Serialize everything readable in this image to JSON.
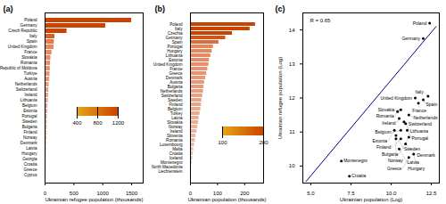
{
  "chart_data": [
    {
      "type": "bar",
      "orientation": "horizontal",
      "title": "(a)",
      "xlabel": "Ukrainian refugee population (thousands)",
      "categories": [
        "Poland",
        "Germany",
        "Czech Republic",
        "Italy",
        "Spain",
        "United Kingdom",
        "France",
        "Slovakia",
        "Romania",
        "Republic of Moldova",
        "Turkiye",
        "Austria",
        "Netherlands",
        "Switzerland",
        "Ireland",
        "Lithuania",
        "Belgium",
        "Estonia",
        "Portugal",
        "Sweden",
        "Bulgaria",
        "Finland",
        "Norway",
        "Denmark",
        "Latvia",
        "Hungary",
        "Georgia",
        "Croatia",
        "Greece",
        "Cyprus"
      ],
      "values": [
        1500,
        1050,
        380,
        170,
        160,
        155,
        120,
        100,
        95,
        90,
        85,
        80,
        70,
        65,
        60,
        55,
        50,
        45,
        40,
        38,
        36,
        34,
        32,
        28,
        26,
        22,
        20,
        18,
        16,
        14
      ],
      "colors": [
        "#c94400",
        "#c94400",
        "#c94400",
        "#d65f26",
        "#e37a4c",
        "#e8865d",
        "#e88961",
        "#e88c65",
        "#e88f69",
        "#e8916d",
        "#e89471",
        "#e89776",
        "#e89a7a",
        "#e89d7e",
        "#e8a082",
        "#e8a386",
        "#e8a68a",
        "#e8a88e",
        "#e8ab92",
        "#e8ae97",
        "#e8b19b",
        "#e8b49f",
        "#e8b7a3",
        "#e8baa7",
        "#e8bdab",
        "#e8bfaf",
        "#e8c2b4",
        "#e8c5b8",
        "#e8c8bc",
        "#e8cbc0"
      ],
      "xlim": [
        0,
        1700
      ],
      "xticks": [
        0,
        500,
        1000,
        1500
      ],
      "grid": false,
      "colorbar_range": [
        400,
        1200
      ],
      "colorbar_ticks": [
        400,
        800,
        1200
      ],
      "colorbar_colors": [
        "#e8a419",
        "#c94500"
      ]
    },
    {
      "type": "bar",
      "orientation": "horizontal",
      "title": "(b)",
      "xlabel": "Ukrainian population (thousands)",
      "categories": [
        "Poland",
        "Italy",
        "Czechia",
        "Germany",
        "Spain",
        "Portugal",
        "Hungary",
        "Lithuania",
        "Estonia",
        "United Kingdom",
        "France",
        "Greece",
        "Denmark",
        "Austria",
        "Bulgaria",
        "Netherlands",
        "Switzerland",
        "Sweden",
        "Finland",
        "Belgium",
        "Turkey",
        "Latvia",
        "Slovakia",
        "Norway",
        "Ireland",
        "Slovenia",
        "Romania",
        "Luxembourg",
        "Malta",
        "Croatia",
        "Iceland",
        "Montenegro",
        "North Macedonia",
        "Liechtenstein"
      ],
      "values": [
        240,
        220,
        155,
        130,
        105,
        85,
        80,
        75,
        70,
        68,
        64,
        60,
        56,
        52,
        50,
        48,
        45,
        42,
        40,
        38,
        35,
        32,
        30,
        27,
        24,
        20,
        18,
        15,
        12,
        10,
        8,
        6,
        4,
        2
      ],
      "colors": [
        "#c94400",
        "#c94400",
        "#c94400",
        "#d15518",
        "#dd6d3a",
        "#e8845a",
        "#e8875e",
        "#e88961",
        "#e88c65",
        "#e88e69",
        "#e8916c",
        "#e89370",
        "#e89674",
        "#e89877",
        "#e89b7b",
        "#e89d7f",
        "#e8a082",
        "#e8a386",
        "#e8a589",
        "#e8a88d",
        "#e8aa91",
        "#e8ad94",
        "#e8af98",
        "#e8b29c",
        "#e8b49f",
        "#e8b7a3",
        "#e8b9a7",
        "#e8bcaa",
        "#e8beae",
        "#e8c1b1",
        "#e8c3b5",
        "#e8c6b9",
        "#e8c8bc",
        "#e8cbc0"
      ],
      "xlim": [
        0,
        270
      ],
      "xticks": [
        0,
        100,
        200
      ],
      "grid": false,
      "colorbar_range": [
        100,
        200
      ],
      "colorbar_ticks": [
        100,
        200
      ],
      "colorbar_colors": [
        "#e8a419",
        "#c94500"
      ]
    },
    {
      "type": "scatter",
      "title": "(c)",
      "xlabel": "Ukrainian population (Log)",
      "ylabel": "Ukrainian refugee population (Log)",
      "annotations": [
        "R = 0.65"
      ],
      "labels": [
        "Poland",
        "Germany",
        "Italy",
        "Spain",
        "United Kingdom",
        "France",
        "Slovakia",
        "Romania",
        "Netherlands",
        "Ireland",
        "Switzerland",
        "Lithuania",
        "Belgium",
        "Estonia",
        "Portugal",
        "Sweden",
        "Bulgaria",
        "Finland",
        "Norway",
        "Denmark",
        "Latvia",
        "Hungary",
        "Greece",
        "Montenegro",
        "Croatia"
      ],
      "x": [
        12.4,
        12.0,
        12.3,
        12.0,
        11.5,
        11.7,
        10.6,
        10.4,
        11.1,
        10.5,
        10.8,
        10.9,
        10.6,
        10.2,
        11.0,
        10.3,
        11.1,
        10.6,
        10.3,
        10.9,
        10.5,
        11.4,
        11.1,
        6.9,
        7.4
      ],
      "values": [
        14.2,
        13.75,
        12.05,
        11.95,
        12.0,
        11.85,
        11.65,
        11.6,
        11.5,
        11.4,
        11.3,
        11.25,
        11.05,
        11.05,
        11.05,
        10.9,
        10.85,
        10.8,
        10.8,
        10.65,
        10.5,
        10.35,
        10.25,
        10.15,
        9.7
      ],
      "color": "black",
      "fit_line": {
        "type": "line",
        "x": [
          4.7,
          12.8
        ],
        "values": [
          9.55,
          14.1
        ],
        "color": "#00008B"
      },
      "xlim": [
        4.5,
        13.0
      ],
      "ylim": [
        9.5,
        14.5
      ],
      "xticks": [
        {
          "value": 5,
          "label": "5.0"
        },
        7.5,
        {
          "value": 10,
          "label": "10.0"
        },
        12.5
      ],
      "yticks": [
        10,
        11,
        12,
        13,
        14
      ],
      "grid": false
    }
  ]
}
